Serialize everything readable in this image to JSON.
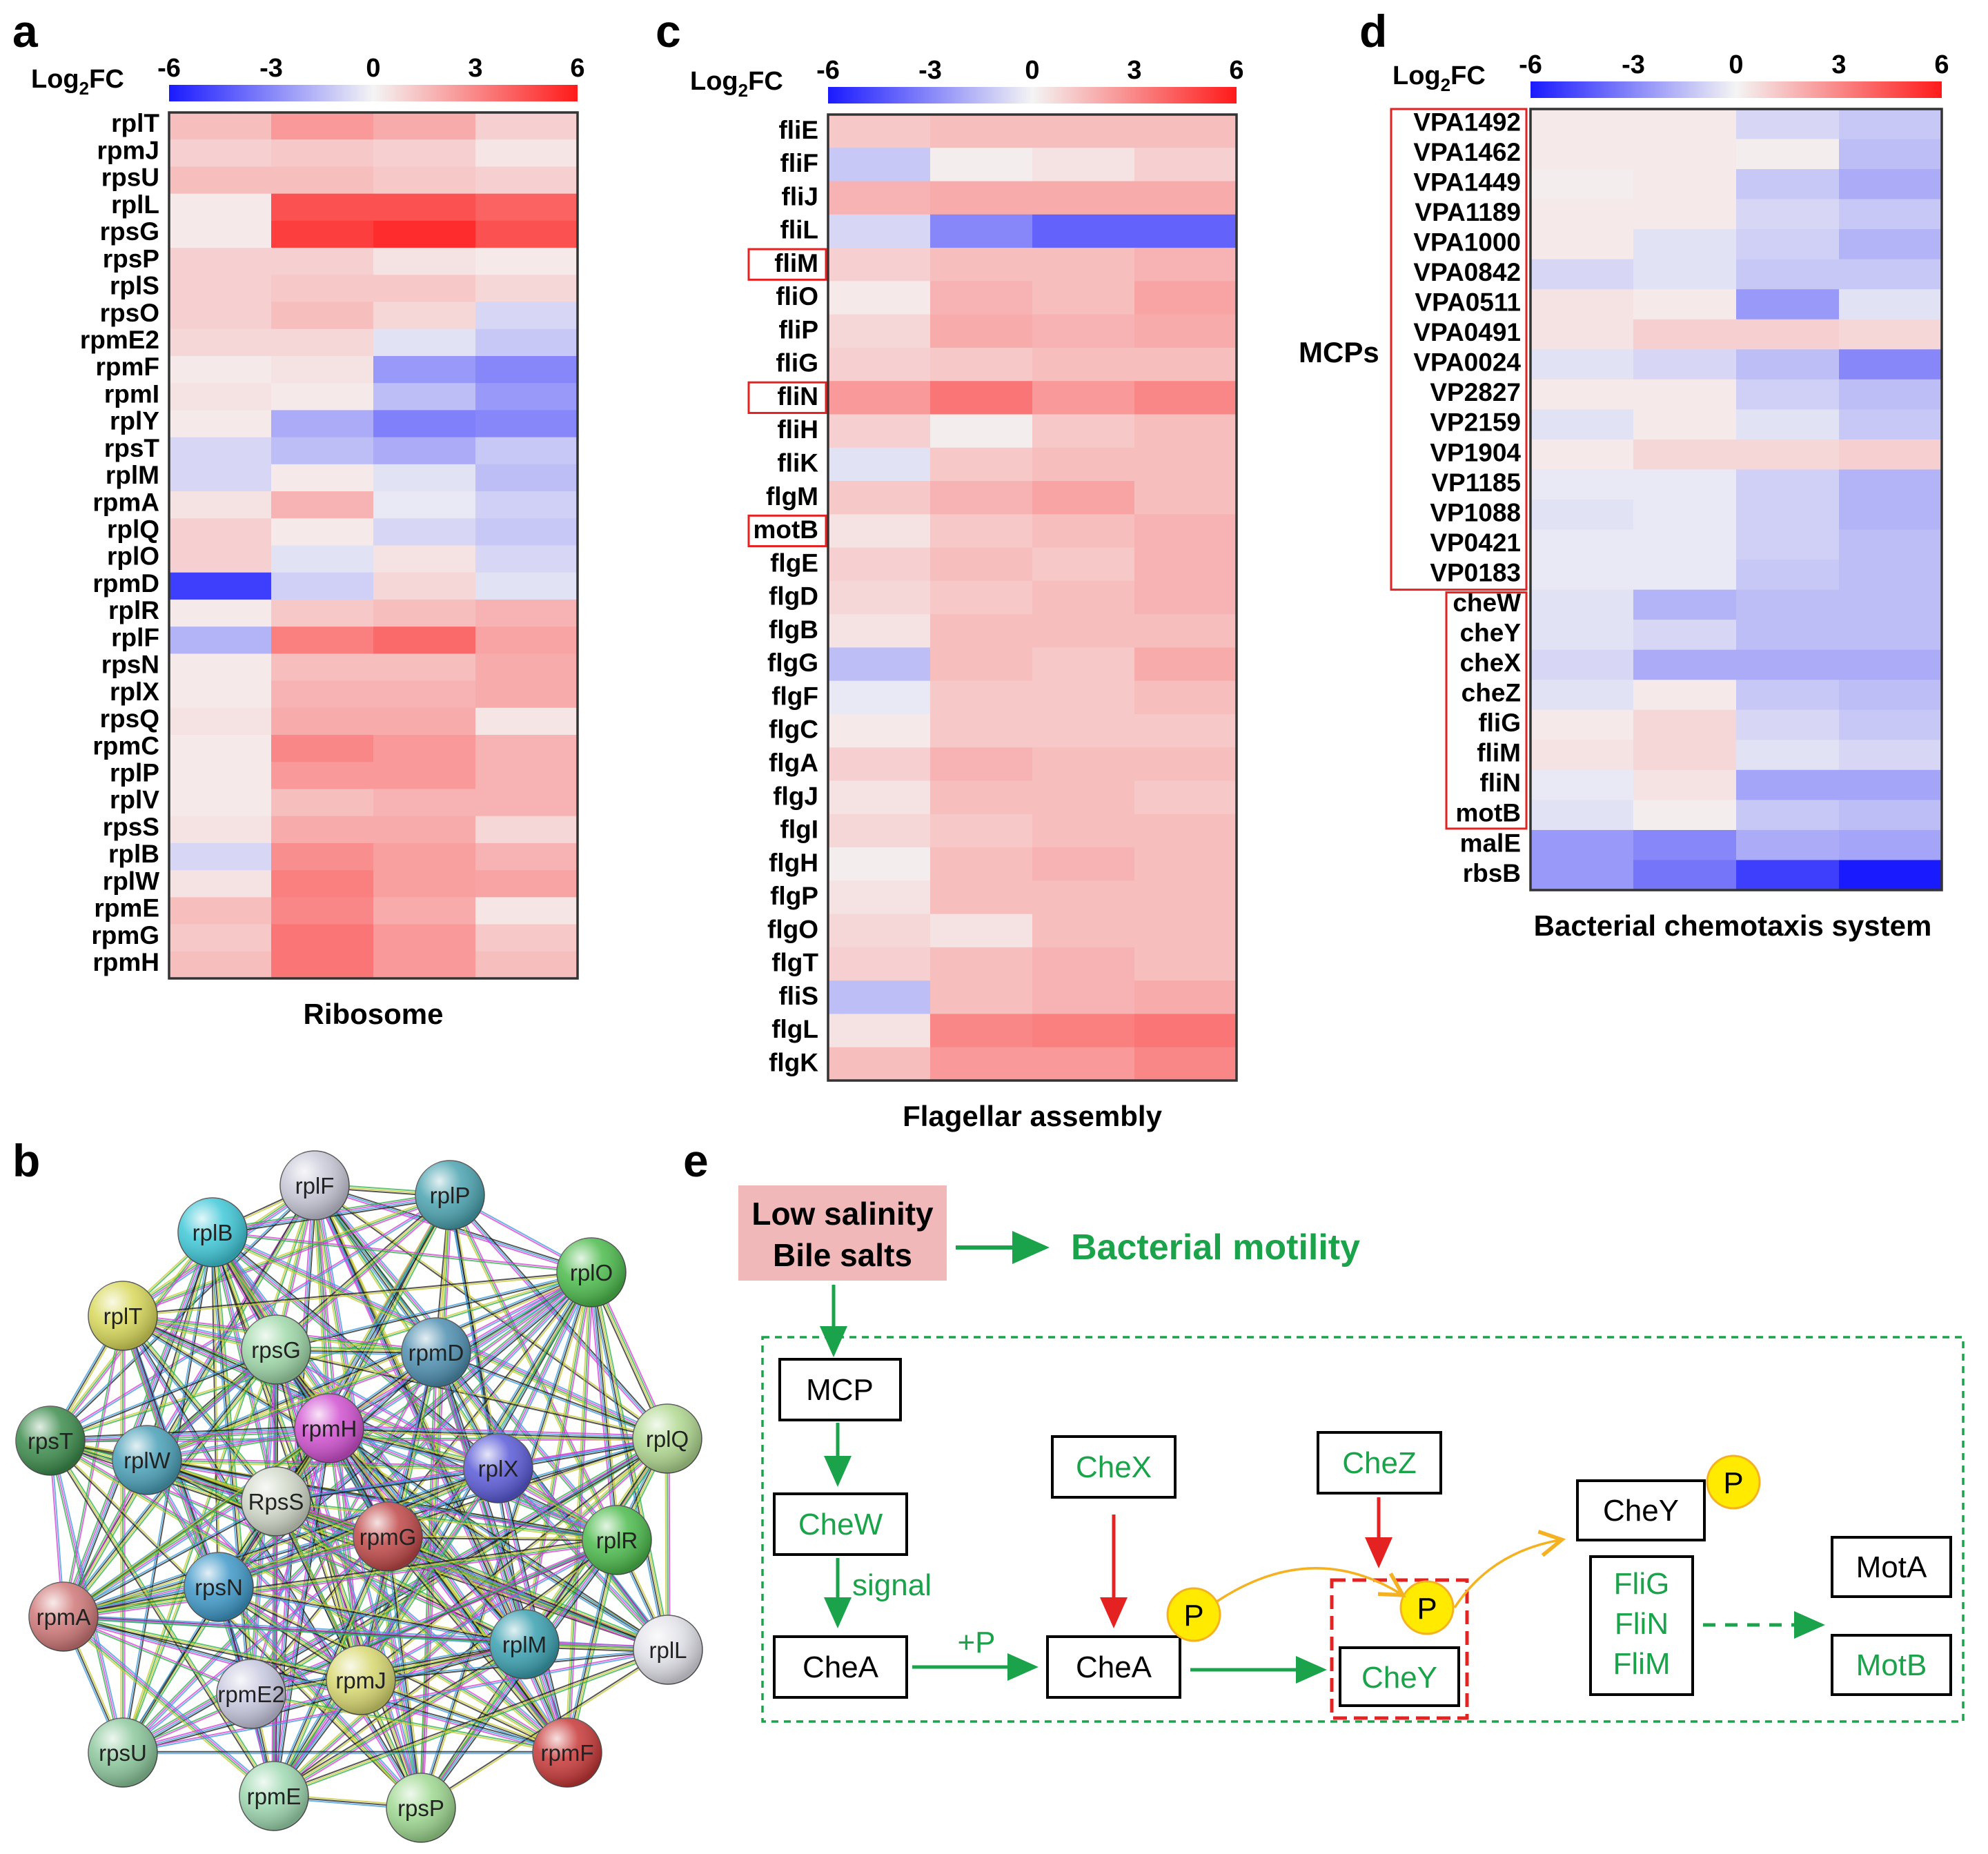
{
  "panels": {
    "a": "a",
    "b": "b",
    "c": "c",
    "d": "d",
    "e": "e"
  },
  "colorbar": {
    "label_main": "Log",
    "label_sub": "2",
    "label_tail": "FC",
    "ticks": [
      "-6",
      "-3",
      "0",
      "3",
      "6"
    ],
    "colors": {
      "low": "#1a1aff",
      "mid": "#f4f4f4",
      "high": "#ff1a1a"
    }
  },
  "chart_data": [
    {
      "type": "heatmap",
      "panel": "a",
      "title": "Ribosome",
      "value_range": [
        -6,
        6
      ],
      "rows": [
        "rplT",
        "rpmJ",
        "rpsU",
        "rplL",
        "rpsG",
        "rpsP",
        "rplS",
        "rpsO",
        "rpmE2",
        "rpmF",
        "rpmI",
        "rplY",
        "rpsT",
        "rplM",
        "rpmA",
        "rplQ",
        "rplO",
        "rpmD",
        "rplR",
        "rplF",
        "rpsN",
        "rplX",
        "rpsQ",
        "rpmC",
        "rplP",
        "rplV",
        "rpsS",
        "rplB",
        "rplW",
        "rpmE",
        "rpmG",
        "rpmH"
      ],
      "values": [
        [
          1.5,
          2.5,
          2.0,
          1.0
        ],
        [
          1.0,
          1.2,
          1.0,
          0.4
        ],
        [
          1.5,
          1.5,
          1.2,
          1.0
        ],
        [
          0.3,
          4.5,
          4.5,
          4.0
        ],
        [
          0.3,
          5.0,
          5.5,
          4.5
        ],
        [
          1.0,
          1.0,
          0.5,
          0.3
        ],
        [
          1.0,
          1.2,
          1.2,
          0.8
        ],
        [
          1.0,
          1.5,
          0.8,
          -0.8
        ],
        [
          0.8,
          0.8,
          -0.5,
          -1.2
        ],
        [
          0.3,
          0.5,
          -2.5,
          -3.0
        ],
        [
          0.5,
          0.3,
          -1.5,
          -2.5
        ],
        [
          0.3,
          -2.0,
          -3.2,
          -3.0
        ],
        [
          -0.8,
          -1.5,
          -2.0,
          -1.2
        ],
        [
          -0.8,
          0.3,
          -0.5,
          -1.5
        ],
        [
          0.5,
          1.8,
          -0.3,
          -1.0
        ],
        [
          1.0,
          0.3,
          -0.8,
          -1.2
        ],
        [
          1.0,
          -0.5,
          0.5,
          -0.8
        ],
        [
          -5.0,
          -1.0,
          0.8,
          -0.5
        ],
        [
          0.3,
          1.2,
          1.5,
          1.8
        ],
        [
          -1.8,
          3.2,
          3.8,
          2.2
        ],
        [
          0.3,
          1.5,
          1.5,
          2.0
        ],
        [
          0.3,
          1.8,
          1.8,
          2.0
        ],
        [
          0.5,
          2.0,
          2.0,
          0.4
        ],
        [
          0.3,
          3.0,
          2.5,
          1.8
        ],
        [
          0.3,
          2.5,
          2.5,
          1.8
        ],
        [
          0.3,
          1.5,
          1.8,
          1.8
        ],
        [
          0.5,
          2.0,
          2.0,
          0.8
        ],
        [
          -0.8,
          2.8,
          2.3,
          1.8
        ],
        [
          0.5,
          3.2,
          2.3,
          2.2
        ],
        [
          1.5,
          3.0,
          2.0,
          0.4
        ],
        [
          1.2,
          3.5,
          2.5,
          1.2
        ],
        [
          1.5,
          3.5,
          2.5,
          1.5
        ]
      ]
    },
    {
      "type": "heatmap",
      "panel": "c",
      "title": "Flagellar assembly",
      "value_range": [
        -6,
        6
      ],
      "rows": [
        "fliE",
        "fliF",
        "fliJ",
        "fliL",
        "fliM",
        "fliO",
        "fliP",
        "fliG",
        "fliN",
        "fliH",
        "fliK",
        "flgM",
        "motB",
        "flgE",
        "flgD",
        "flgB",
        "flgG",
        "flgF",
        "flgC",
        "flgA",
        "flgJ",
        "flgI",
        "flgH",
        "flgP",
        "flgO",
        "flgT",
        "fliS",
        "flgL",
        "flgK"
      ],
      "highlighted": [
        "fliM",
        "fliN",
        "motB"
      ],
      "values": [
        [
          1.2,
          1.5,
          1.5,
          1.5
        ],
        [
          -1.2,
          0.2,
          0.5,
          1.0
        ],
        [
          1.8,
          2.0,
          2.0,
          2.0
        ],
        [
          -0.8,
          -3.0,
          -4.0,
          -4.0
        ],
        [
          1.0,
          1.5,
          1.5,
          1.8
        ],
        [
          0.3,
          1.8,
          1.5,
          2.2
        ],
        [
          0.8,
          2.0,
          1.8,
          2.0
        ],
        [
          1.0,
          1.2,
          1.5,
          1.5
        ],
        [
          2.5,
          3.5,
          2.5,
          3.0
        ],
        [
          1.0,
          0.2,
          1.2,
          1.5
        ],
        [
          -0.5,
          1.2,
          1.5,
          1.5
        ],
        [
          1.2,
          1.8,
          2.2,
          1.5
        ],
        [
          0.5,
          1.2,
          1.5,
          1.8
        ],
        [
          1.0,
          1.5,
          1.2,
          1.8
        ],
        [
          0.8,
          1.2,
          1.5,
          1.8
        ],
        [
          0.5,
          1.5,
          1.5,
          1.5
        ],
        [
          -1.5,
          1.5,
          1.2,
          2.0
        ],
        [
          -0.3,
          1.2,
          1.2,
          1.5
        ],
        [
          0.3,
          1.2,
          1.2,
          1.2
        ],
        [
          1.0,
          1.8,
          1.5,
          1.5
        ],
        [
          0.5,
          1.5,
          1.5,
          1.2
        ],
        [
          0.8,
          1.2,
          1.5,
          1.5
        ],
        [
          0.2,
          1.5,
          1.8,
          1.5
        ],
        [
          0.5,
          1.5,
          1.5,
          1.5
        ],
        [
          0.8,
          0.5,
          1.5,
          1.5
        ],
        [
          1.0,
          1.5,
          1.8,
          1.5
        ],
        [
          -1.5,
          1.5,
          1.8,
          2.0
        ],
        [
          0.5,
          3.0,
          3.2,
          3.5
        ],
        [
          1.5,
          2.5,
          2.5,
          3.0
        ]
      ]
    },
    {
      "type": "heatmap",
      "panel": "d",
      "title": "Bacterial chemotaxis system",
      "value_range": [
        -6,
        6
      ],
      "group_label": "MCPs",
      "rows": [
        "VPA1492",
        "VPA1462",
        "VPA1449",
        "VPA1189",
        "VPA1000",
        "VPA0842",
        "VPA0511",
        "VPA0491",
        "VPA0024",
        "VP2827",
        "VP2159",
        "VP1904",
        "VP1185",
        "VP1088",
        "VP0421",
        "VP0183",
        "cheW",
        "cheY",
        "cheX",
        "cheZ",
        "fliG",
        "fliM",
        "fliN",
        "motB",
        "malE",
        "rbsB"
      ],
      "mcp_group": [
        "VPA1492",
        "VPA1462",
        "VPA1449",
        "VPA1189",
        "VPA1000",
        "VPA0842",
        "VPA0511",
        "VPA0491",
        "VPA0024",
        "VP2827",
        "VP2159",
        "VP1904",
        "VP1185",
        "VP1088",
        "VP0421",
        "VP0183"
      ],
      "che_group": [
        "cheW",
        "cheY",
        "cheX",
        "cheZ",
        "fliG",
        "fliM",
        "fliN",
        "motB"
      ],
      "values": [
        [
          0.3,
          0.3,
          -0.8,
          -1.2
        ],
        [
          0.3,
          0.3,
          0.2,
          -1.5
        ],
        [
          0.2,
          0.3,
          -1.2,
          -2.0
        ],
        [
          0.3,
          0.3,
          -0.8,
          -1.2
        ],
        [
          0.3,
          -0.5,
          -1.0,
          -1.8
        ],
        [
          -0.8,
          -0.5,
          -1.2,
          -1.2
        ],
        [
          0.5,
          0.3,
          -2.5,
          -0.5
        ],
        [
          0.5,
          1.0,
          1.0,
          0.8
        ],
        [
          -0.5,
          -0.8,
          -1.5,
          -3.0
        ],
        [
          0.3,
          0.3,
          -1.0,
          -1.5
        ],
        [
          -0.5,
          0.3,
          -0.5,
          -1.2
        ],
        [
          0.3,
          0.8,
          0.8,
          1.0
        ],
        [
          -0.3,
          -0.3,
          -1.0,
          -1.8
        ],
        [
          -0.5,
          -0.3,
          -1.0,
          -1.8
        ],
        [
          -0.3,
          -0.3,
          -1.0,
          -1.5
        ],
        [
          -0.3,
          -0.3,
          -1.2,
          -1.5
        ],
        [
          -0.5,
          -1.8,
          -1.5,
          -1.5
        ],
        [
          -0.5,
          -0.8,
          -1.5,
          -1.5
        ],
        [
          -0.8,
          -2.0,
          -2.0,
          -2.0
        ],
        [
          -0.5,
          0.3,
          -1.2,
          -1.5
        ],
        [
          0.3,
          0.8,
          -0.8,
          -1.2
        ],
        [
          0.5,
          0.8,
          -0.5,
          -0.8
        ],
        [
          -0.3,
          0.5,
          -2.2,
          -2.2
        ],
        [
          -0.5,
          0.2,
          -1.2,
          -1.5
        ],
        [
          -2.5,
          -3.0,
          -2.0,
          -2.2
        ],
        [
          -2.5,
          -3.5,
          -5.0,
          -6.0
        ]
      ]
    }
  ],
  "network": {
    "nodes": [
      {
        "label": "rplF",
        "color": "#c8c8d8"
      },
      {
        "label": "rplP",
        "color": "#4aa3b0"
      },
      {
        "label": "rplB",
        "color": "#3fc8d8"
      },
      {
        "label": "rplO",
        "color": "#4cbb4c"
      },
      {
        "label": "rplT",
        "color": "#d8d85a"
      },
      {
        "label": "rpsG",
        "color": "#9ed8a8"
      },
      {
        "label": "rpmD",
        "color": "#4e8fb0"
      },
      {
        "label": "rplQ",
        "color": "#b0d890"
      },
      {
        "label": "rpsT",
        "color": "#3c8c4c"
      },
      {
        "label": "rplW",
        "color": "#4aa0b8"
      },
      {
        "label": "rpmH",
        "color": "#d050d0"
      },
      {
        "label": "rplX",
        "color": "#5a5ad8"
      },
      {
        "label": "RpsS",
        "color": "#d0d8c8"
      },
      {
        "label": "rpmG",
        "color": "#c04848"
      },
      {
        "label": "rplR",
        "color": "#4cbb4c"
      },
      {
        "label": "rpsN",
        "color": "#3f98c8"
      },
      {
        "label": "rpmA",
        "color": "#d07878"
      },
      {
        "label": "rplM",
        "color": "#3aa0b0"
      },
      {
        "label": "rplL",
        "color": "#e0e0e8"
      },
      {
        "label": "rpmE2",
        "color": "#c8c8e0"
      },
      {
        "label": "rpmJ",
        "color": "#d8d870"
      },
      {
        "label": "rpsU",
        "color": "#8cc89c"
      },
      {
        "label": "rpmF",
        "color": "#c83838"
      },
      {
        "label": "rpmE",
        "color": "#9ed8b0"
      },
      {
        "label": "rpsP",
        "color": "#9ed890"
      }
    ]
  },
  "pathway": {
    "stimulus_line1": "Low salinity",
    "stimulus_line2": "Bile salts",
    "outcome": "Bacterial motility",
    "mcp": "MCP",
    "chew": "CheW",
    "signal": "signal",
    "chea1": "CheA",
    "plusp": "+P",
    "chea2": "CheA",
    "chex": "CheX",
    "chez": "CheZ",
    "p1": "P",
    "p2": "P",
    "p3": "P",
    "chey": "CheY",
    "cheyp": "CheY",
    "flig": "FliG",
    "flin": "FliN",
    "flim": "FliM",
    "mota": "MotA",
    "motb": "MotB",
    "colors": {
      "green": "#1aa34a",
      "red": "#e52222",
      "gold": "#f4b223",
      "pink": "#f0b8b8",
      "yellow": "#ffea00"
    }
  }
}
